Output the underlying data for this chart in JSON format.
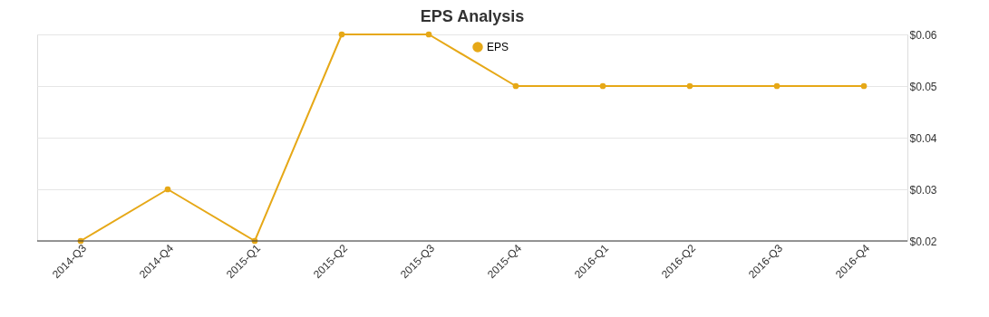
{
  "chart_data": {
    "type": "line",
    "title": "EPS Analysis",
    "categories": [
      "2014-Q3",
      "2014-Q4",
      "2015-Q1",
      "2015-Q2",
      "2015-Q3",
      "2015-Q4",
      "2016-Q1",
      "2016-Q2",
      "2016-Q3",
      "2016-Q4"
    ],
    "series": [
      {
        "name": "EPS",
        "color": "#e6a817",
        "values": [
          0.02,
          0.03,
          0.02,
          0.06,
          0.06,
          0.05,
          0.05,
          0.05,
          0.05,
          0.05
        ]
      }
    ],
    "ylim": [
      0.02,
      0.06
    ],
    "yticks": [
      {
        "value": 0.02,
        "label": "$0.02"
      },
      {
        "value": 0.03,
        "label": "$0.03"
      },
      {
        "value": 0.04,
        "label": "$0.04"
      },
      {
        "value": 0.05,
        "label": "$0.05"
      },
      {
        "value": 0.06,
        "label": "$0.06"
      }
    ],
    "grid": "y",
    "legend": "top",
    "marker": "circle",
    "line_style": "solid"
  }
}
